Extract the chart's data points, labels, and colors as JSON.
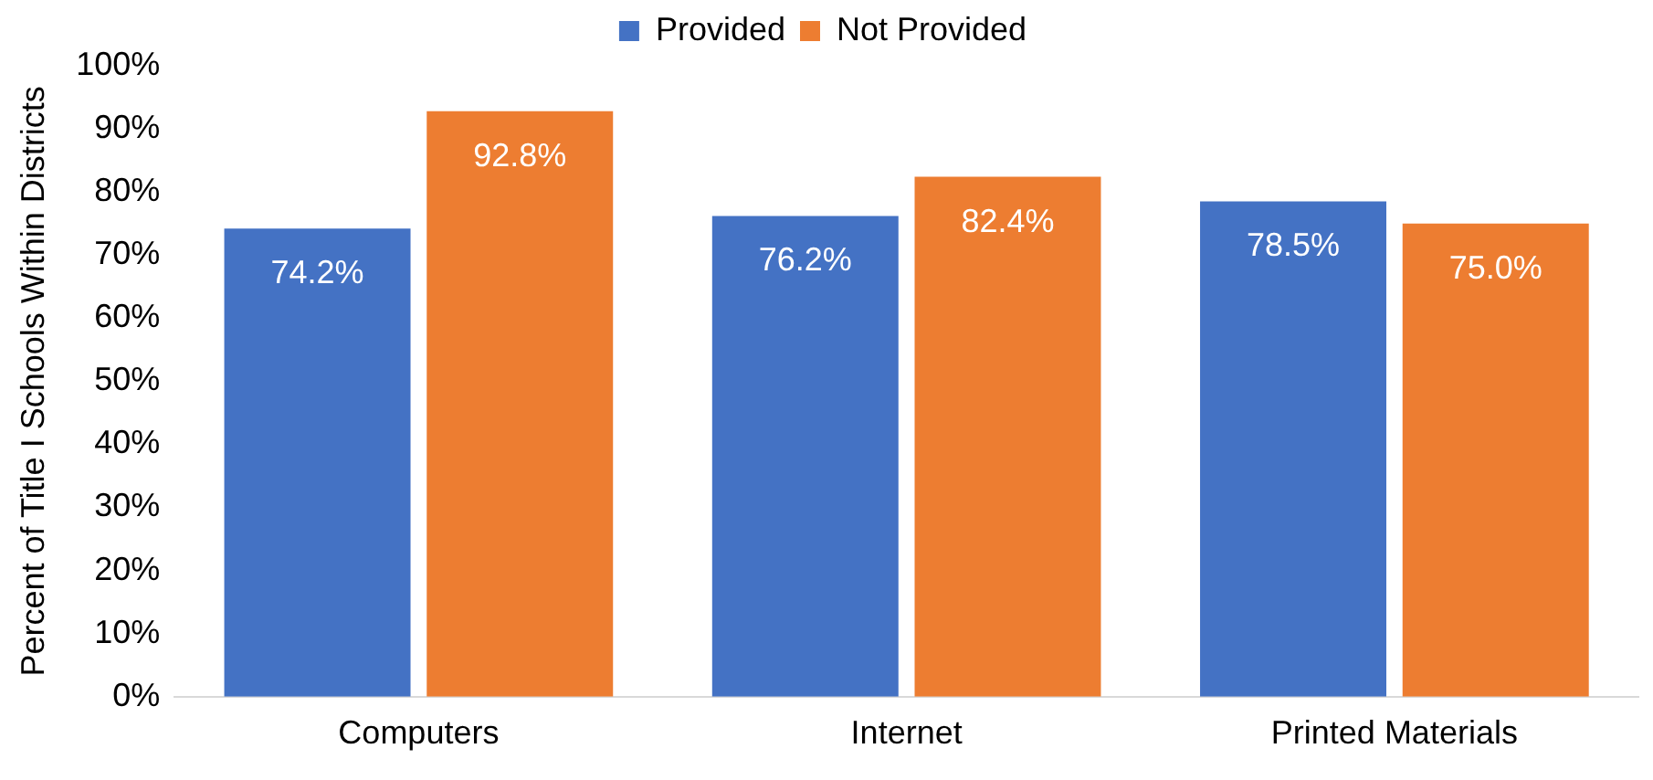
{
  "chart_data": {
    "type": "bar",
    "ylabel": "Percent of Title I Schools Within Districts",
    "categories": [
      "Computers",
      "Internet",
      "Printed Materials"
    ],
    "series": [
      {
        "name": "Provided",
        "color": "#4472c4",
        "values": [
          74.2,
          76.2,
          78.5
        ],
        "value_labels": [
          "74.2%",
          "76.2%",
          "78.5%"
        ]
      },
      {
        "name": "Not Provided",
        "color": "#ed7d31",
        "values": [
          92.8,
          82.4,
          75.0
        ],
        "value_labels": [
          "92.8%",
          "82.4%",
          "75.0%"
        ]
      }
    ],
    "ylim": [
      0,
      100
    ],
    "yticks": [
      {
        "value": 0,
        "label": "0%"
      },
      {
        "value": 10,
        "label": "10%"
      },
      {
        "value": 20,
        "label": "20%"
      },
      {
        "value": 30,
        "label": "30%"
      },
      {
        "value": 40,
        "label": "40%"
      },
      {
        "value": 50,
        "label": "50%"
      },
      {
        "value": 60,
        "label": "60%"
      },
      {
        "value": 70,
        "label": "70%"
      },
      {
        "value": 80,
        "label": "80%"
      },
      {
        "value": 90,
        "label": "90%"
      },
      {
        "value": 100,
        "label": "100%"
      }
    ],
    "grid": false,
    "legend": "top"
  }
}
